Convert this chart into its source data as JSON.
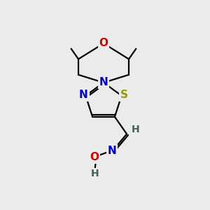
{
  "background_color": "#ebebeb",
  "atom_colors": {
    "C": "#000000",
    "N": "#0000cc",
    "O": "#cc0000",
    "S": "#999900",
    "H": "#406060"
  },
  "bond_color": "#000000",
  "figsize": [
    3.0,
    3.0
  ],
  "dpi": 100
}
